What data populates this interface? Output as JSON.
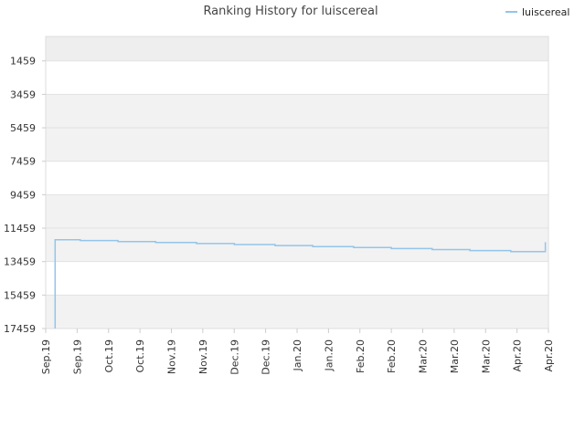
{
  "chart_data": {
    "type": "line",
    "title": "Ranking History for luiscereal",
    "xlabel": "",
    "ylabel": "",
    "y_inverted": true,
    "ylim": [
      17459,
      0
    ],
    "y_ticks": [
      1459,
      3459,
      5459,
      7459,
      9459,
      11459,
      13459,
      15459,
      17459
    ],
    "x_tick_labels": [
      "Sep.19",
      "Sep.19",
      "Oct.19",
      "Oct.19",
      "Nov.19",
      "Nov.19",
      "Dec.19",
      "Dec.19",
      "Jan.20",
      "Jan.20",
      "Feb.20",
      "Feb.20",
      "Mar.20",
      "Mar.20",
      "Mar.20",
      "Apr.20",
      "Apr.20"
    ],
    "legend": {
      "position": "top-right"
    },
    "grid": true,
    "band_colors": [
      "#f2f2f2",
      "#ffffff"
    ],
    "series": [
      {
        "name": "luiscereal",
        "color": "#92c5ea",
        "points": [
          {
            "t": 0.3,
            "rank": 17459
          },
          {
            "t": 0.3,
            "rank": 12150
          },
          {
            "t": 1.1,
            "rank": 12150
          },
          {
            "t": 1.1,
            "rank": 12200
          },
          {
            "t": 2.3,
            "rank": 12200
          },
          {
            "t": 2.3,
            "rank": 12260
          },
          {
            "t": 3.5,
            "rank": 12260
          },
          {
            "t": 3.5,
            "rank": 12320
          },
          {
            "t": 4.8,
            "rank": 12320
          },
          {
            "t": 4.8,
            "rank": 12380
          },
          {
            "t": 6.0,
            "rank": 12380
          },
          {
            "t": 6.0,
            "rank": 12440
          },
          {
            "t": 7.3,
            "rank": 12440
          },
          {
            "t": 7.3,
            "rank": 12500
          },
          {
            "t": 8.5,
            "rank": 12500
          },
          {
            "t": 8.5,
            "rank": 12560
          },
          {
            "t": 9.8,
            "rank": 12560
          },
          {
            "t": 9.8,
            "rank": 12620
          },
          {
            "t": 11.0,
            "rank": 12620
          },
          {
            "t": 11.0,
            "rank": 12680
          },
          {
            "t": 12.3,
            "rank": 12680
          },
          {
            "t": 12.3,
            "rank": 12740
          },
          {
            "t": 13.5,
            "rank": 12740
          },
          {
            "t": 13.5,
            "rank": 12800
          },
          {
            "t": 14.8,
            "rank": 12800
          },
          {
            "t": 14.8,
            "rank": 12860
          },
          {
            "t": 15.9,
            "rank": 12860
          },
          {
            "t": 15.9,
            "rank": 12300
          }
        ]
      }
    ]
  }
}
